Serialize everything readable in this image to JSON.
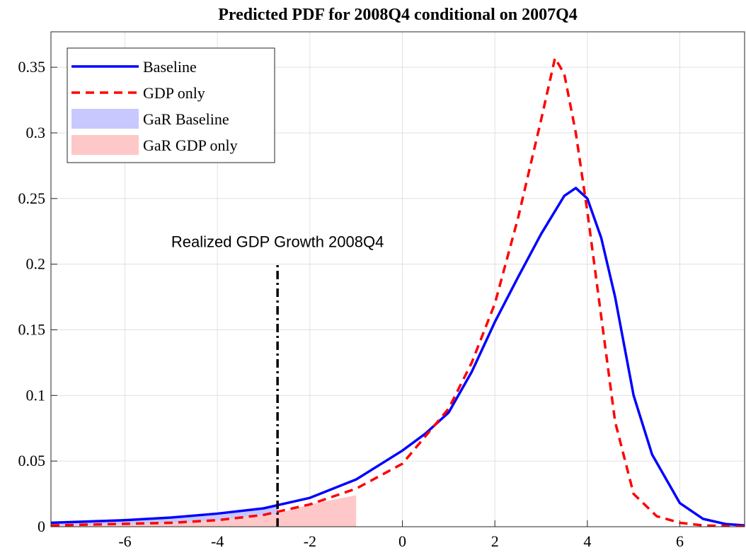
{
  "chart_data": {
    "type": "line",
    "title": "Predicted PDF for 2008Q4 conditional on 2007Q4",
    "xlim": [
      -7.6,
      7.4
    ],
    "ylim": [
      0,
      0.377
    ],
    "xticks": [
      -6,
      -4,
      -2,
      0,
      2,
      4,
      6
    ],
    "yticks": [
      0,
      0.05,
      0.1,
      0.15,
      0.2,
      0.25,
      0.3,
      0.35
    ],
    "grid": true,
    "legend": "top-left",
    "series": [
      {
        "name": "Baseline",
        "color": "#0000ff",
        "style": "solid",
        "x": [
          -7.6,
          -6,
          -5,
          -4,
          -3,
          -2,
          -1,
          0,
          0.5,
          1,
          1.5,
          2,
          2.5,
          3,
          3.5,
          3.75,
          4,
          4.3,
          4.6,
          5,
          5.4,
          6,
          6.5,
          7,
          7.4
        ],
        "values": [
          0.003,
          0.005,
          0.007,
          0.01,
          0.014,
          0.022,
          0.036,
          0.058,
          0.071,
          0.087,
          0.118,
          0.156,
          0.19,
          0.223,
          0.252,
          0.258,
          0.25,
          0.22,
          0.175,
          0.1,
          0.055,
          0.018,
          0.006,
          0.002,
          0.001
        ]
      },
      {
        "name": "GDP only",
        "color": "#ff0000",
        "style": "dashed",
        "x": [
          -7.6,
          -5,
          -4,
          -3,
          -2,
          -1,
          0,
          1,
          1.5,
          2,
          2.5,
          3,
          3.3,
          3.5,
          3.75,
          4,
          4.3,
          4.6,
          5,
          5.5,
          6,
          6.5,
          7,
          7.4
        ],
        "values": [
          0.001,
          0.003,
          0.005,
          0.009,
          0.017,
          0.029,
          0.048,
          0.09,
          0.125,
          0.17,
          0.235,
          0.31,
          0.357,
          0.345,
          0.3,
          0.24,
          0.16,
          0.08,
          0.025,
          0.008,
          0.003,
          0.001,
          0.0005,
          0.0002
        ]
      },
      {
        "name": "GaR Baseline",
        "color": "#c8c8ff",
        "style": "fill",
        "x": [
          -7.6,
          -6,
          -5,
          -4,
          -3,
          -2.7
        ],
        "values": [
          0.003,
          0.005,
          0.007,
          0.01,
          0.014,
          0.016
        ]
      },
      {
        "name": "GaR GDP only",
        "color": "#ffc8c8",
        "style": "fill",
        "x": [
          -7.6,
          -5,
          -4,
          -3,
          -2.7,
          -2,
          -1
        ],
        "values": [
          0.001,
          0.003,
          0.005,
          0.009,
          0.01,
          0.017,
          0.024
        ]
      }
    ],
    "annotation": {
      "text": "Realized GDP Growth 2008Q4",
      "x": -2.7,
      "y": 0.2,
      "color": "#000000"
    }
  }
}
